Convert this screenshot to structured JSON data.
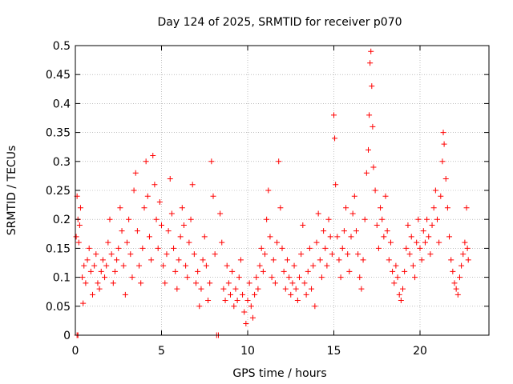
{
  "chart_data": {
    "type": "scatter",
    "title": "Day 124 of 2025, SRMTID for receiver p070",
    "xlabel": "GPS time / hours",
    "ylabel": "SRMTID / TECUs",
    "xlim": [
      0,
      24
    ],
    "ylim": [
      0,
      0.5
    ],
    "x_ticks": [
      0,
      5,
      10,
      15,
      20
    ],
    "x_tick_labels": [
      "0",
      "5",
      "10",
      "15",
      "20"
    ],
    "y_ticks": [
      0,
      0.05,
      0.1,
      0.15,
      0.2,
      0.25,
      0.3,
      0.35,
      0.4,
      0.45,
      0.5
    ],
    "y_tick_labels": [
      "0",
      "0.05",
      "0.1",
      "0.15",
      "0.2",
      "0.25",
      "0.3",
      "0.35",
      "0.4",
      "0.45",
      "0.5"
    ],
    "grid": true,
    "marker": "+",
    "marker_color": "#ff0000",
    "series": [
      {
        "name": "SRMTID",
        "points": [
          [
            0.05,
            0.17
          ],
          [
            0.1,
            0.24
          ],
          [
            0.15,
            0.2
          ],
          [
            0.2,
            0.16
          ],
          [
            0.25,
            0.19
          ],
          [
            0.1,
            0.0
          ],
          [
            0.15,
            0.0
          ],
          [
            0.3,
            0.22
          ],
          [
            0.4,
            0.1
          ],
          [
            0.5,
            0.12
          ],
          [
            0.45,
            0.055
          ],
          [
            0.6,
            0.09
          ],
          [
            0.7,
            0.13
          ],
          [
            0.8,
            0.15
          ],
          [
            0.9,
            0.11
          ],
          [
            1.0,
            0.07
          ],
          [
            1.1,
            0.12
          ],
          [
            1.2,
            0.14
          ],
          [
            1.3,
            0.09
          ],
          [
            1.4,
            0.08
          ],
          [
            1.5,
            0.11
          ],
          [
            1.6,
            0.13
          ],
          [
            1.7,
            0.1
          ],
          [
            1.8,
            0.12
          ],
          [
            1.9,
            0.16
          ],
          [
            2.0,
            0.2
          ],
          [
            2.1,
            0.14
          ],
          [
            2.2,
            0.09
          ],
          [
            2.3,
            0.11
          ],
          [
            2.4,
            0.13
          ],
          [
            2.5,
            0.15
          ],
          [
            2.6,
            0.22
          ],
          [
            2.7,
            0.18
          ],
          [
            2.8,
            0.12
          ],
          [
            2.9,
            0.07
          ],
          [
            3.0,
            0.16
          ],
          [
            3.1,
            0.2
          ],
          [
            3.2,
            0.14
          ],
          [
            3.3,
            0.1
          ],
          [
            3.4,
            0.25
          ],
          [
            3.5,
            0.28
          ],
          [
            3.6,
            0.18
          ],
          [
            3.7,
            0.12
          ],
          [
            3.8,
            0.09
          ],
          [
            3.9,
            0.15
          ],
          [
            4.0,
            0.22
          ],
          [
            4.1,
            0.3
          ],
          [
            4.2,
            0.24
          ],
          [
            4.3,
            0.17
          ],
          [
            4.4,
            0.13
          ],
          [
            4.5,
            0.31
          ],
          [
            4.6,
            0.26
          ],
          [
            4.7,
            0.2
          ],
          [
            4.8,
            0.15
          ],
          [
            4.9,
            0.23
          ],
          [
            5.0,
            0.19
          ],
          [
            5.1,
            0.12
          ],
          [
            5.2,
            0.09
          ],
          [
            5.3,
            0.14
          ],
          [
            5.4,
            0.18
          ],
          [
            5.5,
            0.27
          ],
          [
            5.6,
            0.21
          ],
          [
            5.7,
            0.15
          ],
          [
            5.8,
            0.11
          ],
          [
            5.9,
            0.08
          ],
          [
            6.0,
            0.13
          ],
          [
            6.1,
            0.17
          ],
          [
            6.2,
            0.22
          ],
          [
            6.3,
            0.19
          ],
          [
            6.4,
            0.12
          ],
          [
            6.5,
            0.1
          ],
          [
            6.6,
            0.16
          ],
          [
            6.7,
            0.2
          ],
          [
            6.8,
            0.26
          ],
          [
            6.9,
            0.14
          ],
          [
            7.0,
            0.09
          ],
          [
            7.1,
            0.11
          ],
          [
            7.2,
            0.05
          ],
          [
            7.3,
            0.08
          ],
          [
            7.4,
            0.13
          ],
          [
            7.5,
            0.17
          ],
          [
            7.6,
            0.12
          ],
          [
            7.7,
            0.06
          ],
          [
            7.8,
            0.09
          ],
          [
            7.9,
            0.3
          ],
          [
            8.0,
            0.24
          ],
          [
            8.1,
            0.14
          ],
          [
            8.2,
            0.0
          ],
          [
            8.3,
            0.0
          ],
          [
            8.4,
            0.21
          ],
          [
            8.5,
            0.16
          ],
          [
            8.6,
            0.08
          ],
          [
            8.7,
            0.06
          ],
          [
            8.8,
            0.12
          ],
          [
            8.9,
            0.09
          ],
          [
            9.0,
            0.07
          ],
          [
            9.1,
            0.11
          ],
          [
            9.2,
            0.05
          ],
          [
            9.3,
            0.08
          ],
          [
            9.4,
            0.06
          ],
          [
            9.5,
            0.1
          ],
          [
            9.6,
            0.13
          ],
          [
            9.7,
            0.07
          ],
          [
            9.8,
            0.04
          ],
          [
            9.9,
            0.02
          ],
          [
            10.0,
            0.06
          ],
          [
            10.1,
            0.09
          ],
          [
            10.2,
            0.05
          ],
          [
            10.3,
            0.03
          ],
          [
            10.4,
            0.07
          ],
          [
            10.5,
            0.1
          ],
          [
            10.6,
            0.08
          ],
          [
            10.7,
            0.12
          ],
          [
            10.8,
            0.15
          ],
          [
            10.9,
            0.11
          ],
          [
            11.0,
            0.14
          ],
          [
            11.1,
            0.2
          ],
          [
            11.2,
            0.25
          ],
          [
            11.3,
            0.17
          ],
          [
            11.4,
            0.1
          ],
          [
            11.5,
            0.13
          ],
          [
            11.6,
            0.09
          ],
          [
            11.7,
            0.16
          ],
          [
            11.8,
            0.3
          ],
          [
            11.9,
            0.22
          ],
          [
            12.0,
            0.15
          ],
          [
            12.1,
            0.11
          ],
          [
            12.2,
            0.08
          ],
          [
            12.3,
            0.13
          ],
          [
            12.4,
            0.1
          ],
          [
            12.5,
            0.07
          ],
          [
            12.6,
            0.09
          ],
          [
            12.7,
            0.12
          ],
          [
            12.8,
            0.08
          ],
          [
            12.9,
            0.06
          ],
          [
            13.0,
            0.1
          ],
          [
            13.1,
            0.14
          ],
          [
            13.2,
            0.19
          ],
          [
            13.3,
            0.09
          ],
          [
            13.4,
            0.07
          ],
          [
            13.5,
            0.11
          ],
          [
            13.6,
            0.15
          ],
          [
            13.7,
            0.08
          ],
          [
            13.8,
            0.12
          ],
          [
            13.9,
            0.05
          ],
          [
            14.0,
            0.16
          ],
          [
            14.1,
            0.21
          ],
          [
            14.2,
            0.13
          ],
          [
            14.3,
            0.1
          ],
          [
            14.4,
            0.18
          ],
          [
            14.5,
            0.15
          ],
          [
            14.6,
            0.12
          ],
          [
            14.7,
            0.2
          ],
          [
            14.8,
            0.17
          ],
          [
            14.9,
            0.14
          ],
          [
            15.0,
            0.38
          ],
          [
            15.05,
            0.34
          ],
          [
            15.1,
            0.26
          ],
          [
            15.2,
            0.17
          ],
          [
            15.3,
            0.13
          ],
          [
            15.4,
            0.1
          ],
          [
            15.5,
            0.15
          ],
          [
            15.6,
            0.18
          ],
          [
            15.7,
            0.22
          ],
          [
            15.8,
            0.14
          ],
          [
            15.9,
            0.11
          ],
          [
            16.0,
            0.17
          ],
          [
            16.1,
            0.21
          ],
          [
            16.2,
            0.24
          ],
          [
            16.3,
            0.18
          ],
          [
            16.4,
            0.14
          ],
          [
            16.5,
            0.1
          ],
          [
            16.6,
            0.08
          ],
          [
            16.7,
            0.13
          ],
          [
            16.8,
            0.2
          ],
          [
            16.9,
            0.28
          ],
          [
            17.0,
            0.32
          ],
          [
            17.05,
            0.38
          ],
          [
            17.1,
            0.47
          ],
          [
            17.15,
            0.49
          ],
          [
            17.2,
            0.43
          ],
          [
            17.25,
            0.36
          ],
          [
            17.3,
            0.29
          ],
          [
            17.4,
            0.25
          ],
          [
            17.5,
            0.19
          ],
          [
            17.6,
            0.15
          ],
          [
            17.7,
            0.22
          ],
          [
            17.8,
            0.2
          ],
          [
            17.9,
            0.17
          ],
          [
            18.0,
            0.24
          ],
          [
            18.1,
            0.18
          ],
          [
            18.2,
            0.13
          ],
          [
            18.3,
            0.16
          ],
          [
            18.4,
            0.11
          ],
          [
            18.5,
            0.09
          ],
          [
            18.6,
            0.12
          ],
          [
            18.7,
            0.1
          ],
          [
            18.8,
            0.07
          ],
          [
            18.9,
            0.06
          ],
          [
            19.0,
            0.08
          ],
          [
            19.1,
            0.11
          ],
          [
            19.2,
            0.15
          ],
          [
            19.3,
            0.19
          ],
          [
            19.4,
            0.14
          ],
          [
            19.5,
            0.17
          ],
          [
            19.6,
            0.12
          ],
          [
            19.7,
            0.1
          ],
          [
            19.8,
            0.16
          ],
          [
            19.9,
            0.2
          ],
          [
            20.0,
            0.15
          ],
          [
            20.1,
            0.13
          ],
          [
            20.2,
            0.18
          ],
          [
            20.3,
            0.16
          ],
          [
            20.4,
            0.2
          ],
          [
            20.5,
            0.17
          ],
          [
            20.6,
            0.14
          ],
          [
            20.7,
            0.19
          ],
          [
            20.8,
            0.22
          ],
          [
            20.9,
            0.25
          ],
          [
            21.0,
            0.2
          ],
          [
            21.1,
            0.16
          ],
          [
            21.2,
            0.24
          ],
          [
            21.3,
            0.3
          ],
          [
            21.35,
            0.35
          ],
          [
            21.4,
            0.33
          ],
          [
            21.5,
            0.27
          ],
          [
            21.6,
            0.22
          ],
          [
            21.7,
            0.17
          ],
          [
            21.8,
            0.13
          ],
          [
            21.9,
            0.11
          ],
          [
            22.0,
            0.09
          ],
          [
            22.1,
            0.08
          ],
          [
            22.2,
            0.07
          ],
          [
            22.3,
            0.1
          ],
          [
            22.4,
            0.12
          ],
          [
            22.5,
            0.14
          ],
          [
            22.6,
            0.16
          ],
          [
            22.7,
            0.22
          ],
          [
            22.75,
            0.15
          ],
          [
            22.8,
            0.13
          ]
        ]
      }
    ]
  }
}
